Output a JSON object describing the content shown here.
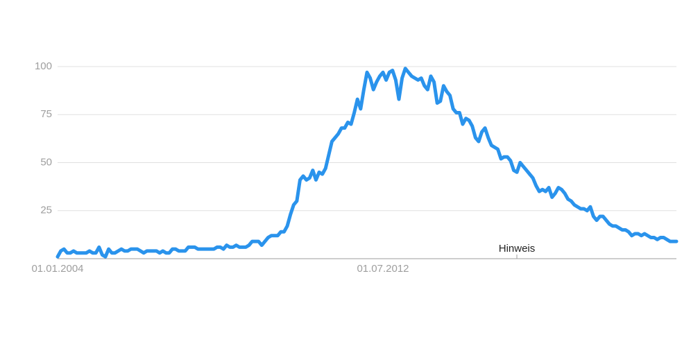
{
  "chart_data": {
    "type": "line",
    "annotation": "Hinweis",
    "categories": [
      "01.01.2004",
      null,
      null,
      null,
      null,
      null,
      null,
      null,
      null,
      null,
      null,
      null,
      null,
      null,
      null,
      null,
      null,
      null,
      null,
      null,
      null,
      null,
      null,
      null,
      null,
      null,
      null,
      null,
      null,
      null,
      null,
      null,
      null,
      null,
      null,
      null,
      null,
      null,
      null,
      null,
      null,
      null,
      null,
      null,
      null,
      null,
      null,
      null,
      null,
      null,
      null,
      null,
      null,
      null,
      null,
      null,
      null,
      null,
      null,
      null,
      null,
      null,
      null,
      null,
      null,
      null,
      null,
      null,
      null,
      null,
      null,
      null,
      null,
      null,
      null,
      null,
      null,
      null,
      null,
      null,
      null,
      null,
      null,
      null,
      null,
      null,
      null,
      null,
      null,
      null,
      null,
      null,
      null,
      null,
      null,
      null,
      null,
      null,
      null,
      null,
      null,
      null,
      "01.07.2012",
      null,
      null,
      null,
      null,
      null,
      null,
      null,
      null,
      null,
      null,
      null,
      null,
      null,
      null,
      null,
      null,
      null,
      null,
      null,
      null,
      null,
      null,
      null,
      null,
      null,
      null,
      null,
      null,
      null,
      null,
      null,
      null,
      null,
      null,
      null,
      null,
      null,
      null,
      null,
      null,
      null,
      null,
      null,
      null,
      null,
      null,
      null,
      null,
      null,
      null,
      null,
      null,
      null,
      null,
      null,
      null,
      null,
      null,
      null,
      null,
      null,
      null,
      null,
      null,
      null,
      null,
      null,
      null,
      null,
      null,
      null,
      null,
      null,
      null,
      null,
      null,
      null,
      null,
      null,
      null,
      null,
      null,
      null,
      null,
      null,
      null,
      null,
      null,
      null,
      null,
      null,
      null
    ],
    "values": [
      1,
      4,
      5,
      3,
      3,
      4,
      3,
      3,
      3,
      3,
      4,
      3,
      3,
      6,
      2,
      1,
      5,
      3,
      3,
      4,
      5,
      4,
      4,
      5,
      5,
      5,
      4,
      3,
      4,
      4,
      4,
      4,
      3,
      4,
      3,
      3,
      5,
      5,
      4,
      4,
      4,
      6,
      6,
      6,
      5,
      5,
      5,
      5,
      5,
      5,
      6,
      6,
      5,
      7,
      6,
      6,
      7,
      6,
      6,
      6,
      7,
      9,
      9,
      9,
      7,
      9,
      11,
      12,
      12,
      12,
      14,
      14,
      17,
      23,
      28,
      30,
      41,
      43,
      41,
      42,
      46,
      41,
      45,
      44,
      47,
      54,
      61,
      63,
      65,
      68,
      68,
      71,
      70,
      76,
      83,
      78,
      88,
      97,
      94,
      88,
      92,
      95,
      97,
      93,
      97,
      98,
      93,
      83,
      94,
      99,
      97,
      95,
      94,
      93,
      94,
      90,
      88,
      95,
      92,
      81,
      82,
      90,
      87,
      85,
      78,
      76,
      76,
      70,
      73,
      72,
      69,
      63,
      61,
      66,
      68,
      63,
      59,
      58,
      57,
      52,
      53,
      53,
      51,
      46,
      45,
      50,
      48,
      46,
      44,
      42,
      38,
      35,
      36,
      35,
      37,
      32,
      34,
      37,
      36,
      34,
      31,
      30,
      28,
      27,
      26,
      26,
      25,
      27,
      22,
      20,
      22,
      22,
      20,
      18,
      17,
      17,
      16,
      15,
      15,
      14,
      12,
      13,
      13,
      12,
      13,
      12,
      11,
      11,
      10,
      11,
      11,
      10,
      9,
      9,
      9
    ],
    "color": "#2a93ec",
    "ylim": [
      0,
      100
    ],
    "yticks": [
      25,
      50,
      75,
      100
    ],
    "grid": true
  }
}
